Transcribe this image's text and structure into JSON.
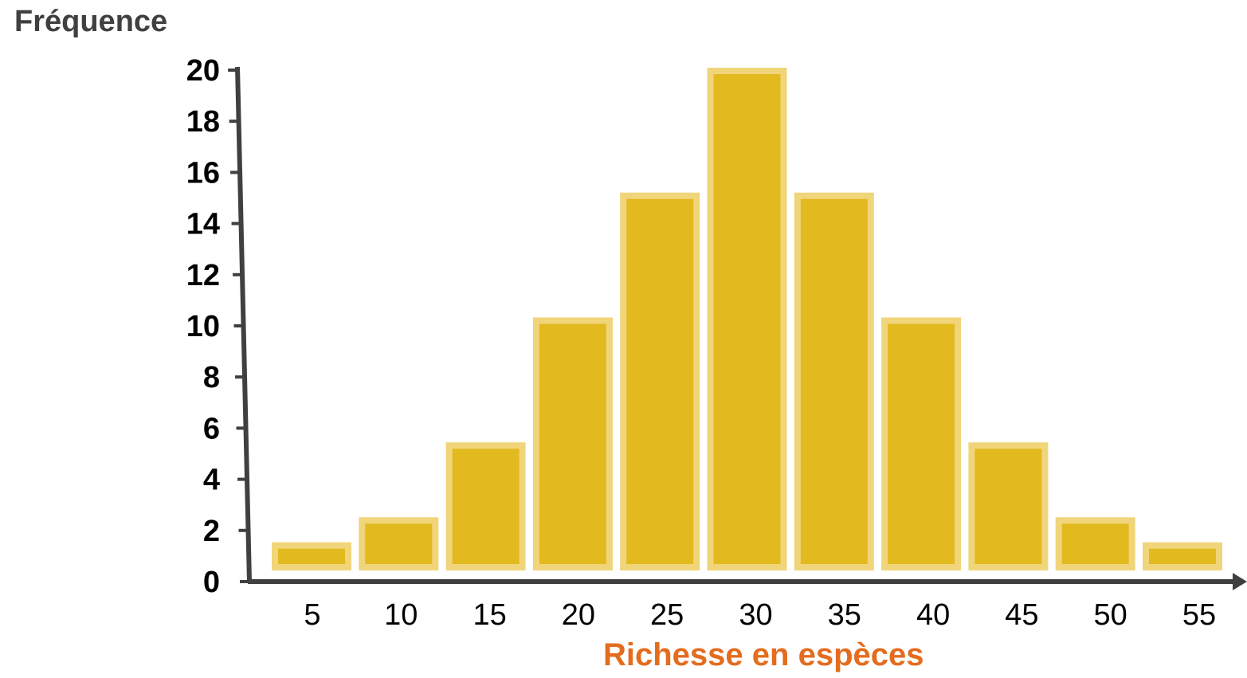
{
  "chart_data": {
    "type": "bar",
    "ylabel": "Fréquence",
    "xlabel": "Richesse en espèces",
    "categories": [
      "5",
      "10",
      "15",
      "20",
      "25",
      "30",
      "35",
      "40",
      "45",
      "50",
      "55"
    ],
    "values": [
      1,
      2,
      5,
      10,
      15,
      20,
      15,
      10,
      5,
      2,
      1
    ],
    "ylim": [
      0,
      20
    ],
    "yticks": [
      "0",
      "2",
      "4",
      "6",
      "8",
      "10",
      "12",
      "14",
      "16",
      "18",
      "20"
    ],
    "grid": false,
    "legend": "none"
  },
  "colors": {
    "bar_fill": "#E3B920",
    "bar_border": "#F0D57A",
    "axis": "#404040",
    "xlabel": "#E46C1E",
    "ylabel": "#404040"
  }
}
